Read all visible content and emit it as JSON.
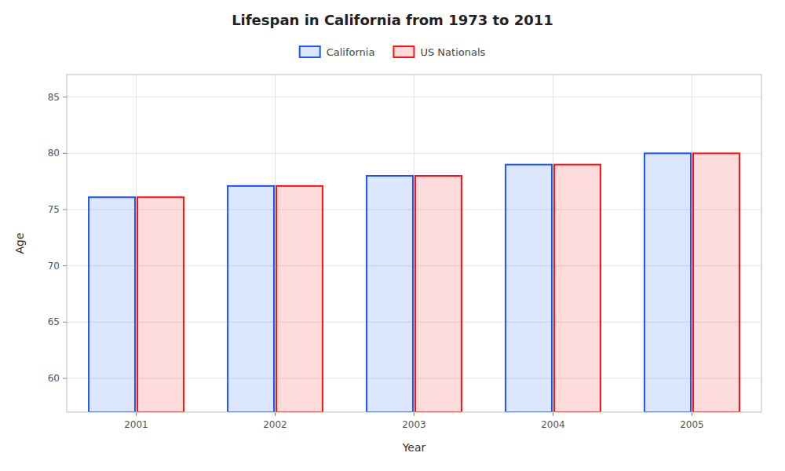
{
  "chart_data": {
    "type": "bar",
    "title": "Lifespan in California from 1973 to 2011",
    "x_label": "Year",
    "y_label": "Age",
    "categories": [
      2001,
      2002,
      2003,
      2004,
      2005
    ],
    "series": [
      {
        "name": "California",
        "color": "#1a55ff",
        "values": [
          76.1,
          77.1,
          78.0,
          79.0,
          80.0
        ]
      },
      {
        "name": "US Nationals",
        "color": "#ff1111",
        "values": [
          76.1,
          77.1,
          78.0,
          79.0,
          80.0
        ]
      }
    ],
    "ylim": [
      57,
      87
    ],
    "yticks": [
      60,
      65,
      70,
      75,
      80,
      85
    ],
    "grid": true,
    "legend": "top"
  }
}
